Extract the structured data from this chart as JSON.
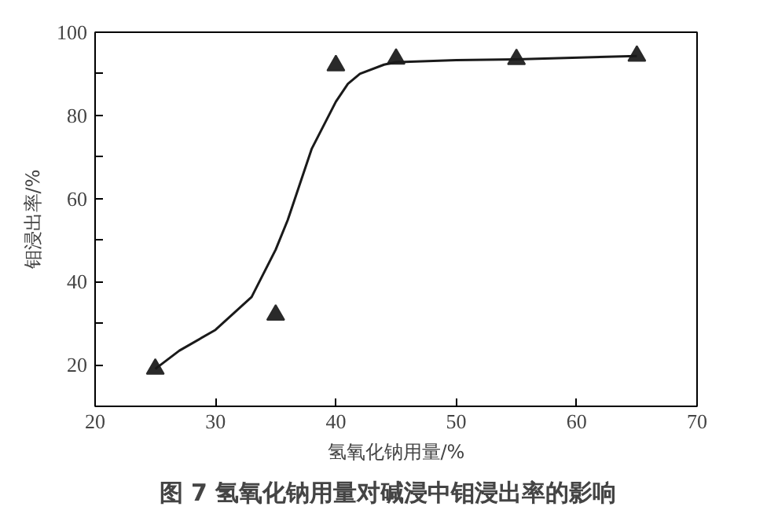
{
  "chart_data": {
    "type": "scatter",
    "title": "图 7   氢氧化钠用量对碱浸中钼浸出率的影响",
    "xlabel": "氢氧化钠用量/%",
    "ylabel": "钼浸出率/%",
    "xlim": [
      20,
      70
    ],
    "xticks": [
      20,
      30,
      40,
      50,
      60,
      70
    ],
    "ylim": [
      10,
      100
    ],
    "yticks": [
      20,
      {
        "value": 30,
        "label": null
      },
      40,
      {
        "value": 50,
        "label": null
      },
      60,
      {
        "value": 70,
        "label": null
      },
      80,
      {
        "value": 90,
        "label": null
      },
      100
    ],
    "grid": false,
    "marker": "triangle",
    "series": [
      {
        "color": "#2a2a2a",
        "x": [
          25,
          35,
          40,
          45,
          55,
          65
        ],
        "values": [
          19,
          32,
          92,
          93.6,
          93.5,
          94.3
        ]
      },
      {
        "type": "line",
        "color": "#1a1a1a",
        "marker": "none",
        "x": [
          25,
          27,
          30,
          33,
          35,
          36,
          37,
          38,
          40,
          41,
          42,
          44,
          45,
          50,
          55,
          65
        ],
        "values": [
          19,
          23.4,
          28.4,
          36.3,
          47.7,
          54.8,
          63.4,
          72,
          83.3,
          87.6,
          90,
          92.2,
          92.8,
          93.3,
          93.5,
          94.3
        ]
      }
    ]
  }
}
